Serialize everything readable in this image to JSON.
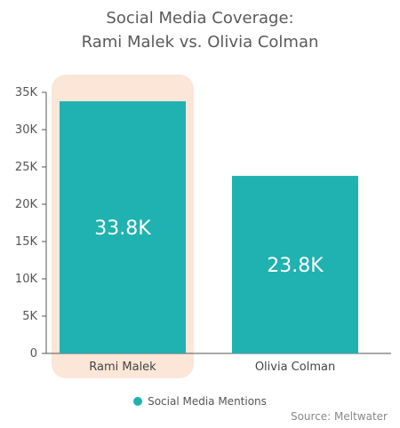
{
  "chart_data": {
    "type": "bar",
    "title_line1": "Social Media Coverage:",
    "title_line2": "Rami Malek vs. Olivia Colman",
    "categories": [
      "Rami Malek",
      "Olivia Colman"
    ],
    "series": [
      {
        "name": "Social Media Mentions",
        "values": [
          33800,
          23800
        ],
        "data_labels": [
          "33.8K",
          "23.8K"
        ],
        "color": "#1fb2b0"
      }
    ],
    "ylim": [
      0,
      35000
    ],
    "yticks": [
      0,
      5000,
      10000,
      15000,
      20000,
      25000,
      30000,
      35000
    ],
    "ytick_labels": [
      "0",
      "5K",
      "10K",
      "15K",
      "20K",
      "25K",
      "30K",
      "35K"
    ],
    "highlight_category": "Rami Malek",
    "highlight_color": "#fbe6d8",
    "legend_position": "bottom-center",
    "grid": false,
    "source": "Source: Meltwater"
  }
}
